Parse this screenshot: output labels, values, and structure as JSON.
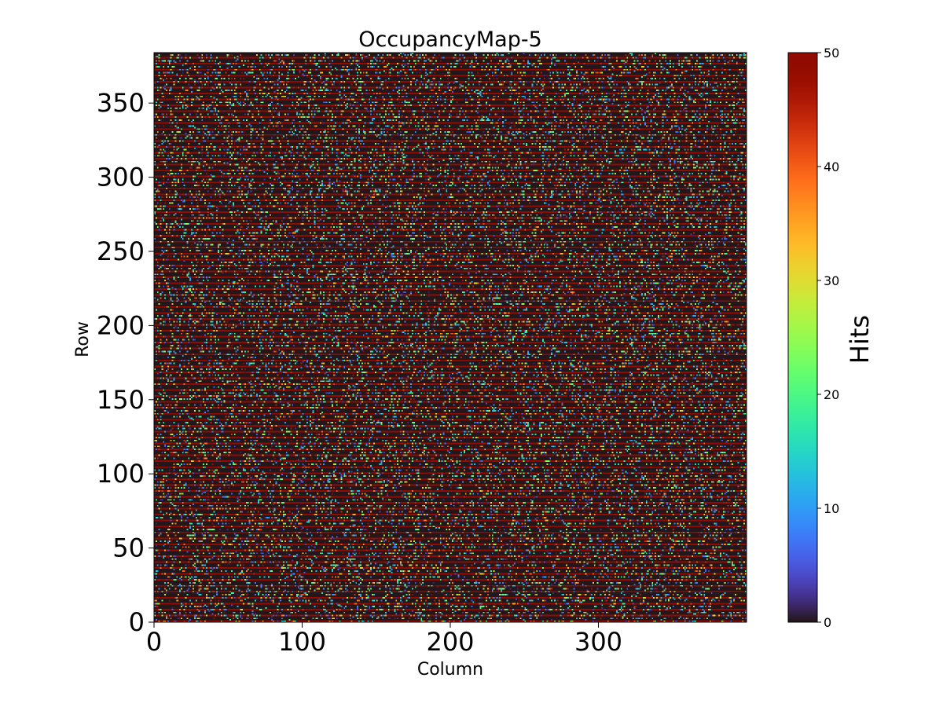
{
  "chart_data": {
    "type": "heatmap",
    "title": "OccupancyMap-5",
    "xlabel": "Column",
    "ylabel": "Row",
    "colorbar_label": "Hits",
    "colormap": "turbo",
    "columns": 400,
    "rows": 384,
    "xlim": [
      0,
      400
    ],
    "ylim": [
      0,
      384
    ],
    "xticks": [
      0,
      100,
      200,
      300
    ],
    "yticks": [
      0,
      50,
      100,
      150,
      200,
      250,
      300,
      350
    ],
    "colorbar_ticks": [
      0,
      10,
      20,
      30,
      40,
      50
    ],
    "vmin": 0,
    "vmax": 50,
    "pattern": {
      "background_value": 0,
      "saturated_row_period": 4,
      "saturated_row_value": 50,
      "hit_row_period": 4,
      "hit_density": 0.25
    }
  }
}
